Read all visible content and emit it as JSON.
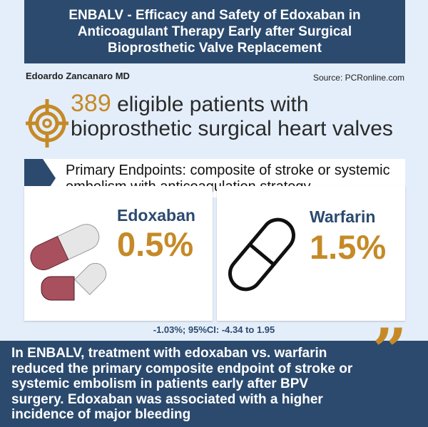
{
  "header": {
    "title": "ENBALV - Efficacy and Safety of Edoxaban in Anticoagulant Therapy Early after Surgical Bioprosthetic Valve Replacement"
  },
  "author": "Edoardo Zancanaro MD",
  "source": "Source: PCRonline.com",
  "population": {
    "number": "389",
    "text": "eligible patients with bioprosthetic surgical heart valves",
    "icon": "target-icon"
  },
  "endpoint": {
    "text": "Primary Endpoints: composite of stroke or systemic embolism with anticoagulation strategy"
  },
  "arms": [
    {
      "drug": "Edoxaban",
      "value": "0.5%",
      "icon": "capsule-icon"
    },
    {
      "drug": "Warfarin",
      "value": "1.5%",
      "icon": "pill-outline-icon"
    }
  ],
  "ci": "-1.03%; 95%CI: -4.34 to 1.95",
  "conclusion": "In ENBALV, treatment with edoxaban vs. warfarin reduced the primary composite endpoint of stroke or systemic embolism in patients early after BPV surgery. Edoxaban was associated with a higher incidence of major bleeding",
  "colors": {
    "navy": "#2b4a6e",
    "gold": "#c58a27",
    "background": "#e4eefa",
    "capsule_red": "#a8505e"
  }
}
